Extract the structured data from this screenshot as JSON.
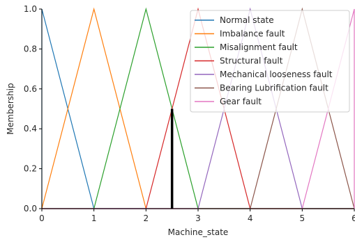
{
  "chart_data": {
    "type": "line",
    "title": "",
    "xlabel": "Machine_state",
    "ylabel": "Membership",
    "xlim": [
      0,
      6
    ],
    "ylim": [
      0,
      1.0
    ],
    "x_ticks": [
      0,
      1,
      2,
      3,
      4,
      5,
      6
    ],
    "x_tick_labels": [
      "0",
      "1",
      "2",
      "3",
      "4",
      "5",
      "6"
    ],
    "y_ticks": [
      0,
      0.2,
      0.4,
      0.6,
      0.8,
      1.0
    ],
    "y_tick_labels": [
      "0.0",
      "0.2",
      "0.4",
      "0.6",
      "0.8",
      "1.0"
    ],
    "grid": false,
    "legend_position": "top-right",
    "series": [
      {
        "name": "Normal state",
        "color": "#1f77b4",
        "x": [
          0,
          0,
          1,
          6
        ],
        "y": [
          0,
          1,
          0,
          0
        ]
      },
      {
        "name": "Imbalance fault",
        "color": "#ff7f0e",
        "x": [
          0,
          1,
          2,
          6
        ],
        "y": [
          0,
          1,
          0,
          0
        ]
      },
      {
        "name": "Misalignment fault",
        "color": "#2ca02c",
        "x": [
          0,
          1,
          2,
          3,
          6
        ],
        "y": [
          0,
          0,
          1,
          0,
          0
        ]
      },
      {
        "name": "Structural fault",
        "color": "#d62728",
        "x": [
          0,
          2,
          3,
          4,
          6
        ],
        "y": [
          0,
          0,
          1,
          0,
          0
        ]
      },
      {
        "name": "Mechanical looseness fault",
        "color": "#9467bd",
        "x": [
          0,
          3,
          4,
          5,
          6
        ],
        "y": [
          0,
          0,
          1,
          0,
          0
        ]
      },
      {
        "name": "Bearing Lubrification fault",
        "color": "#8c564b",
        "x": [
          0,
          4,
          5,
          6
        ],
        "y": [
          0,
          0,
          1,
          0
        ]
      },
      {
        "name": "Gear fault",
        "color": "#e377c2",
        "x": [
          0,
          5,
          6,
          6
        ],
        "y": [
          0,
          0,
          1,
          0
        ]
      }
    ],
    "marker_line": {
      "x": 2.5,
      "y_top": 0.5,
      "color": "#000000"
    }
  }
}
